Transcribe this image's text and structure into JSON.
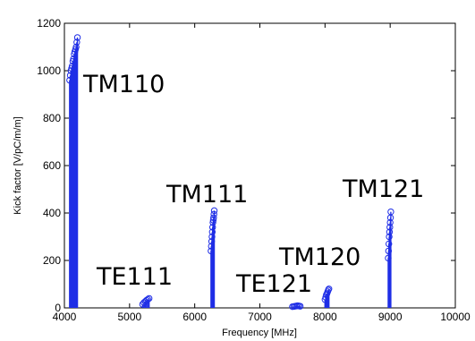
{
  "chart_data": {
    "type": "scatter",
    "title": "",
    "xlabel": "Frequency [MHz]",
    "ylabel": "Kick factor [V/pC/m/m]",
    "xlim": [
      4000,
      10000
    ],
    "ylim": [
      0,
      1200
    ],
    "xticks": [
      "4000",
      "5000",
      "6000",
      "7000",
      "8000",
      "9000",
      "10000"
    ],
    "yticks": [
      "0",
      "200",
      "400",
      "600",
      "800",
      "1000",
      "1200"
    ],
    "grid": false,
    "legend": "none",
    "marker": "circle-open",
    "color": "#1f2ee6",
    "series": [
      {
        "label": "TM110",
        "x": [
          4080,
          4090,
          4100,
          4110,
          4120,
          4130,
          4140,
          4150,
          4160,
          4170,
          4180,
          4190,
          4200
        ],
        "y": [
          960,
          980,
          1000,
          1010,
          1020,
          1040,
          1050,
          1070,
          1080,
          1090,
          1100,
          1120,
          1140
        ]
      },
      {
        "label": "TE111",
        "x": [
          5200,
          5220,
          5240,
          5260,
          5280,
          5300
        ],
        "y": [
          15,
          22,
          27,
          32,
          36,
          40
        ]
      },
      {
        "label": "TM111",
        "x": [
          6250,
          6255,
          6260,
          6265,
          6270,
          6275,
          6280,
          6285,
          6290,
          6295,
          6300
        ],
        "y": [
          240,
          260,
          280,
          300,
          320,
          340,
          360,
          370,
          380,
          395,
          410
        ]
      },
      {
        "label": "TE121",
        "x": [
          7500,
          7520,
          7540,
          7560,
          7580,
          7600,
          7620
        ],
        "y": [
          5,
          6,
          7,
          8,
          9,
          8,
          7
        ]
      },
      {
        "label": "TM120",
        "x": [
          8000,
          8010,
          8020,
          8030,
          8040,
          8050,
          8060
        ],
        "y": [
          35,
          45,
          55,
          60,
          68,
          75,
          80
        ]
      },
      {
        "label": "TM121",
        "x": [
          8970,
          8975,
          8980,
          8985,
          8990,
          8995,
          9000,
          9005,
          9010
        ],
        "y": [
          210,
          240,
          270,
          300,
          320,
          340,
          360,
          380,
          405
        ]
      }
    ],
    "annotations": [
      "TM110",
      "TE111",
      "TM111",
      "TE121",
      "TM120",
      "TM121"
    ]
  }
}
